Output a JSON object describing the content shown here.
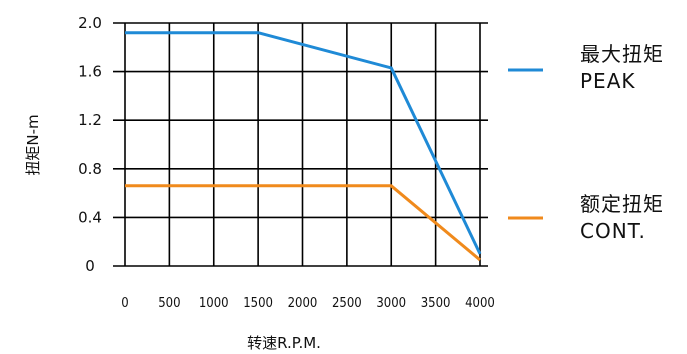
{
  "chart_data": {
    "type": "line",
    "xlabel": "转速R.P.M.",
    "ylabel": "扭矩N-m",
    "xlim": [
      0,
      4000
    ],
    "ylim": [
      0,
      2.0
    ],
    "x_ticks": [
      "0",
      "500",
      "1000",
      "1500",
      "2000",
      "2500",
      "3000",
      "3500",
      "4000"
    ],
    "y_ticks": [
      "2.0",
      "1.6",
      "1.2",
      "0.8",
      "0.4",
      "0"
    ],
    "grid": true,
    "legend_position": "right",
    "series": [
      {
        "name_line1": "最大扭矩",
        "name_line2": "PEAK",
        "color": "#1f8ad6",
        "x": [
          0,
          1500,
          3000,
          4000
        ],
        "y": [
          1.92,
          1.92,
          1.63,
          0.1
        ]
      },
      {
        "name_line1": "额定扭矩",
        "name_line2": "CONT.",
        "color": "#f08a1c",
        "x": [
          0,
          3000,
          4000
        ],
        "y": [
          0.66,
          0.66,
          0.05
        ]
      }
    ]
  }
}
